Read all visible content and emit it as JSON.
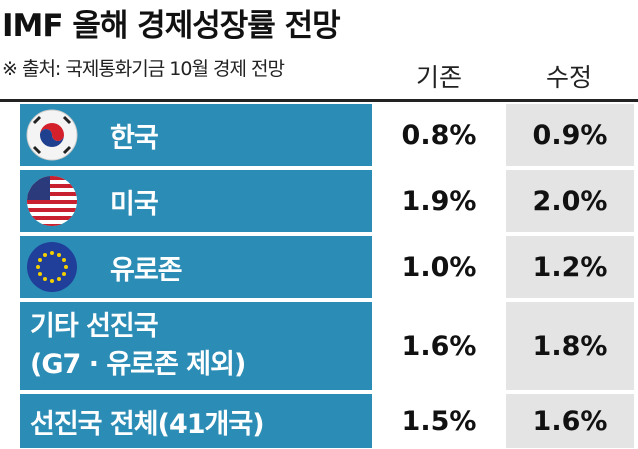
{
  "header": {
    "title": "IMF 올해 경제성장률 전망",
    "source": "※ 출처: 국제통화기금 10월 경제 전망"
  },
  "table": {
    "columns": [
      "기존",
      "수정"
    ],
    "rows": [
      {
        "label": [
          "한국"
        ],
        "values": [
          "0.8%",
          "0.9%"
        ]
      },
      {
        "label": [
          "미국"
        ],
        "values": [
          "1.9%",
          "2.0%"
        ]
      },
      {
        "label": [
          "유로존"
        ],
        "values": [
          "1.0%",
          "1.2%"
        ]
      },
      {
        "label": [
          "기타 선진국",
          "(G7 · 유로존 제외)"
        ],
        "values": [
          "1.6%",
          "1.8%"
        ]
      },
      {
        "label": [
          "선진국 전체(41개국)"
        ],
        "values": [
          "1.5%",
          "1.6%"
        ]
      }
    ]
  }
}
